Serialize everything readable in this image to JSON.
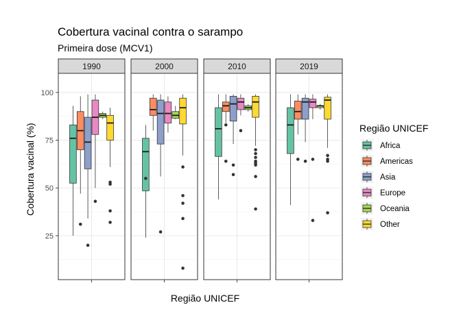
{
  "chart_data": {
    "type": "boxplot",
    "title": "Cobertura vacinal contra o sarampo",
    "subtitle": "Primeira dose (MCV1)",
    "xlabel": "Região UNICEF",
    "ylabel": "Cobertura vacinal (%)",
    "ylim": [
      2,
      110
    ],
    "yticks": [
      25,
      50,
      75,
      100
    ],
    "grid": true,
    "legend": {
      "title": "Região UNICEF",
      "placement": "right",
      "entries": [
        "Africa",
        "Americas",
        "Asia",
        "Europe",
        "Oceania",
        "Other"
      ]
    },
    "colors": {
      "Africa": "#66C2A5",
      "Americas": "#FC8D62",
      "Asia": "#8DA0CB",
      "Europe": "#E78AC3",
      "Oceania": "#A6D854",
      "Other": "#FFD92F"
    },
    "panels": [
      {
        "label": "1990",
        "boxes": [
          {
            "group": "Africa",
            "lower": 25,
            "q1": 52.5,
            "median": 76,
            "q3": 83,
            "upper": 93,
            "outliers": []
          },
          {
            "group": "Americas",
            "lower": 47,
            "q1": 70,
            "median": 80,
            "q3": 90,
            "upper": 98,
            "outliers": [
              31
            ]
          },
          {
            "group": "Asia",
            "lower": 34,
            "q1": 60,
            "median": 74,
            "q3": 87,
            "upper": 99,
            "outliers": [
              20
            ]
          },
          {
            "group": "Europe",
            "lower": 50,
            "q1": 78,
            "median": 87,
            "q3": 96,
            "upper": 99,
            "outliers": [
              43
            ]
          },
          {
            "group": "Oceania",
            "lower": 86,
            "q1": 87,
            "median": 88,
            "q3": 89,
            "upper": 90,
            "outliers": []
          },
          {
            "group": "Other",
            "lower": 61,
            "q1": 75,
            "median": 84,
            "q3": 88,
            "upper": 92,
            "outliers": [
              53,
              52,
              38,
              32
            ]
          }
        ]
      },
      {
        "label": "2000",
        "boxes": [
          {
            "group": "Africa",
            "lower": 24,
            "q1": 48.5,
            "median": 69,
            "q3": 76,
            "upper": 83,
            "outliers": [
              55
            ]
          },
          {
            "group": "Americas",
            "lower": 80,
            "q1": 88,
            "median": 91,
            "q3": 97,
            "upper": 99,
            "outliers": []
          },
          {
            "group": "Asia",
            "lower": 56,
            "q1": 73,
            "median": 89,
            "q3": 96,
            "upper": 99,
            "outliers": [
              27
            ]
          },
          {
            "group": "Europe",
            "lower": 79,
            "q1": 84,
            "median": 89,
            "q3": 95,
            "upper": 98,
            "outliers": []
          },
          {
            "group": "Oceania",
            "lower": 86,
            "q1": 86.5,
            "median": 88,
            "q3": 90,
            "upper": 93,
            "outliers": []
          },
          {
            "group": "Other",
            "lower": 67,
            "q1": 83.5,
            "median": 92,
            "q3": 97,
            "upper": 99,
            "outliers": [
              61,
              46,
              42,
              34,
              8
            ]
          }
        ]
      },
      {
        "label": "2010",
        "boxes": [
          {
            "group": "Africa",
            "lower": 44,
            "q1": 66.5,
            "median": 81,
            "q3": 92,
            "upper": 99,
            "outliers": []
          },
          {
            "group": "Americas",
            "lower": 84,
            "q1": 90,
            "median": 93,
            "q3": 95,
            "upper": 99,
            "outliers": [
              83,
              64
            ]
          },
          {
            "group": "Asia",
            "lower": 73,
            "q1": 85,
            "median": 94,
            "q3": 98,
            "upper": 99,
            "outliers": [
              62,
              57
            ]
          },
          {
            "group": "Europe",
            "lower": 88,
            "q1": 91,
            "median": 95,
            "q3": 97,
            "upper": 99,
            "outliers": [
              80
            ]
          },
          {
            "group": "Oceania",
            "lower": 90,
            "q1": 91,
            "median": 92,
            "q3": 93,
            "upper": 94,
            "outliers": []
          },
          {
            "group": "Other",
            "lower": 72,
            "q1": 87,
            "median": 95,
            "q3": 98,
            "upper": 99,
            "outliers": [
              70,
              68,
              66,
              64,
              63,
              62,
              56,
              39
            ]
          }
        ]
      },
      {
        "label": "2019",
        "boxes": [
          {
            "group": "Africa",
            "lower": 41,
            "q1": 68,
            "median": 83,
            "q3": 92,
            "upper": 99,
            "outliers": []
          },
          {
            "group": "Americas",
            "lower": 78,
            "q1": 86,
            "median": 90,
            "q3": 95.5,
            "upper": 99,
            "outliers": [
              65
            ]
          },
          {
            "group": "Asia",
            "lower": 74,
            "q1": 86,
            "median": 95,
            "q3": 97,
            "upper": 99,
            "outliers": [
              64
            ]
          },
          {
            "group": "Europe",
            "lower": 86,
            "q1": 92,
            "median": 95,
            "q3": 96.5,
            "upper": 99,
            "outliers": [
              65,
              33
            ]
          },
          {
            "group": "Oceania",
            "lower": 91,
            "q1": 92,
            "median": 93,
            "q3": 93,
            "upper": 94,
            "outliers": []
          },
          {
            "group": "Other",
            "lower": 71,
            "q1": 86,
            "median": 96,
            "q3": 97.5,
            "upper": 99,
            "outliers": [
              67,
              65,
              64,
              37
            ]
          }
        ]
      }
    ]
  }
}
